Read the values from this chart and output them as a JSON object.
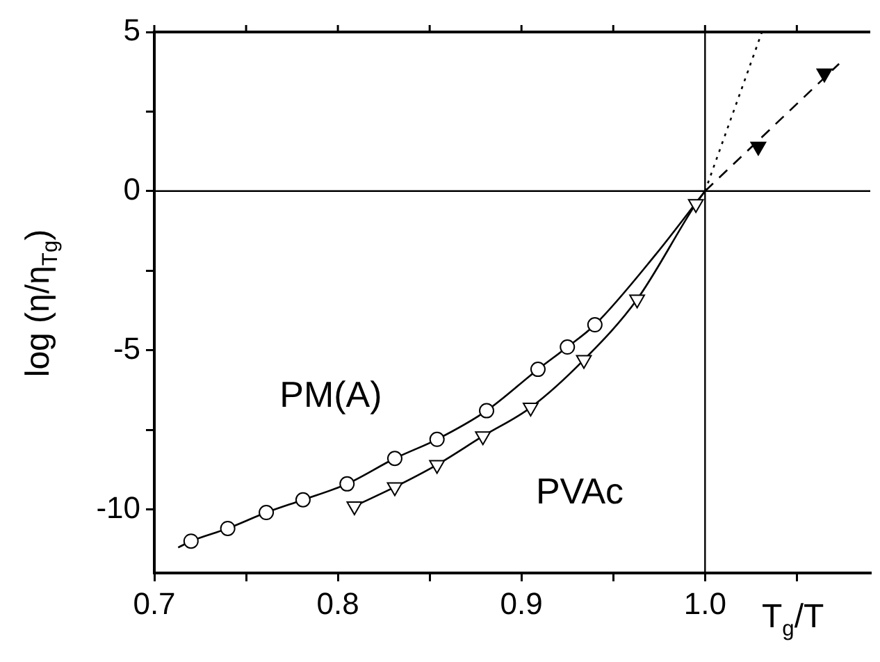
{
  "chart_data": {
    "type": "scatter",
    "xlabel": "T$_{g}$/T",
    "ylabel": "log (η/η$_{Tg}$)",
    "xlim": [
      0.7,
      1.09
    ],
    "ylim": [
      -12,
      5
    ],
    "xticks": [
      0.7,
      {
        "value": 0.75,
        "label": null
      },
      0.8,
      {
        "value": 0.85,
        "label": null
      },
      0.9,
      {
        "value": 0.95,
        "label": null
      },
      {
        "value": 1.0,
        "label": "1.0"
      },
      {
        "value": 1.05,
        "label": null
      }
    ],
    "yticks": [
      -10,
      {
        "value": -7.5,
        "label": null
      },
      -5,
      {
        "value": -2.5,
        "label": null
      },
      0,
      {
        "value": 2.5,
        "label": null
      },
      5
    ],
    "grid": false,
    "legend": false,
    "ref_lines": [
      {
        "axis": "x",
        "value": 1.0,
        "color": "#000000"
      },
      {
        "axis": "y",
        "value": 0,
        "color": "#000000"
      }
    ],
    "series": [
      {
        "name": "PM(A)",
        "type": "scatter",
        "marker": "circle",
        "color": "#000000",
        "x": [
          0.72,
          0.74,
          0.761,
          0.781,
          0.805,
          0.831,
          0.854,
          0.881,
          0.909,
          0.925,
          0.94
        ],
        "values": [
          -11.0,
          -10.6,
          -10.1,
          -9.7,
          -9.2,
          -8.4,
          -7.8,
          -6.9,
          -5.6,
          -4.9,
          -4.2
        ]
      },
      {
        "name": "PVAc",
        "type": "scatter",
        "marker": "triangle",
        "color": "#000000",
        "x": [
          0.809,
          0.831,
          0.854,
          0.879,
          0.905,
          0.934,
          0.963,
          0.995
        ],
        "values": [
          -9.9,
          -9.3,
          -8.6,
          -7.7,
          -6.8,
          -5.3,
          -3.4,
          -0.4
        ]
      },
      {
        "type": "line",
        "line_style": "solid",
        "color": "#000000",
        "x": [
          0.713,
          0.72,
          0.74,
          0.761,
          0.781,
          0.805,
          0.831,
          0.854,
          0.881,
          0.909,
          0.925,
          0.94,
          0.973,
          1.0
        ],
        "values": [
          -11.2,
          -11.0,
          -10.6,
          -10.1,
          -9.7,
          -9.2,
          -8.4,
          -7.8,
          -6.9,
          -5.6,
          -4.9,
          -4.2,
          -2.0,
          0
        ]
      },
      {
        "type": "line",
        "line_style": "solid",
        "color": "#000000",
        "x": [
          0.809,
          0.831,
          0.854,
          0.879,
          0.905,
          0.934,
          0.963,
          0.995,
          1.0
        ],
        "values": [
          -9.9,
          -9.3,
          -8.6,
          -7.7,
          -6.8,
          -5.3,
          -3.4,
          -0.4,
          0
        ]
      },
      {
        "type": "scatter",
        "marker": "triangle",
        "color": "#000000",
        "x": [
          1.029,
          1.065
        ],
        "values": [
          1.4,
          3.7
        ]
      },
      {
        "type": "line",
        "line_style": "dotted",
        "color": "#000000",
        "x": [
          1.0,
          1.031
        ],
        "values": [
          0,
          5
        ]
      },
      {
        "type": "line",
        "line_style": "dashed",
        "color": "#000000",
        "x": [
          1.0,
          1.073
        ],
        "values": [
          0,
          4.0
        ]
      }
    ]
  }
}
